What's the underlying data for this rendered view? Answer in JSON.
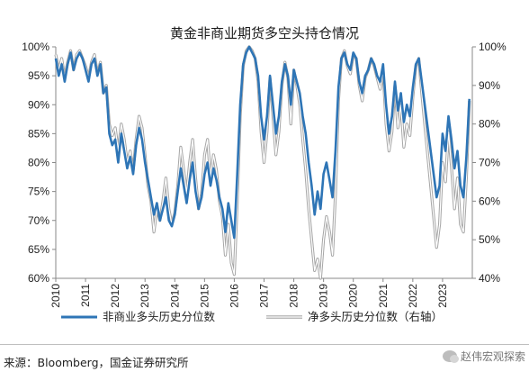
{
  "chart_data": {
    "type": "line",
    "title": "黄金非商业期货多空头持仓情况",
    "x_ticks": [
      "2010",
      "2011",
      "2012",
      "2013",
      "2014",
      "2015",
      "2016",
      "2017",
      "2018",
      "2019",
      "2020",
      "2021",
      "2022",
      "2023"
    ],
    "y_left": {
      "ticks": [
        "100%",
        "95%",
        "90%",
        "85%",
        "80%",
        "75%",
        "70%",
        "65%",
        "60%"
      ],
      "range": [
        60,
        100
      ]
    },
    "y_right": {
      "ticks": [
        "100%",
        "90%",
        "80%",
        "70%",
        "60%",
        "50%",
        "40%"
      ],
      "range": [
        40,
        100
      ]
    },
    "x_range": [
      2010.0,
      2024.0
    ],
    "grid": false,
    "legend": "bottom",
    "series": [
      {
        "name": "非商业多头历史分位数",
        "axis": "left",
        "color": "#2e75b6",
        "points": [
          [
            2010.0,
            98
          ],
          [
            2010.1,
            95
          ],
          [
            2010.2,
            97
          ],
          [
            2010.3,
            94
          ],
          [
            2010.4,
            97
          ],
          [
            2010.5,
            99
          ],
          [
            2010.6,
            96
          ],
          [
            2010.7,
            98
          ],
          [
            2010.8,
            99
          ],
          [
            2010.9,
            98
          ],
          [
            2011.0,
            96
          ],
          [
            2011.1,
            94
          ],
          [
            2011.2,
            97
          ],
          [
            2011.3,
            98
          ],
          [
            2011.4,
            95
          ],
          [
            2011.5,
            97
          ],
          [
            2011.6,
            92
          ],
          [
            2011.7,
            93
          ],
          [
            2011.8,
            85
          ],
          [
            2011.9,
            83
          ],
          [
            2012.0,
            84
          ],
          [
            2012.1,
            80
          ],
          [
            2012.2,
            85
          ],
          [
            2012.3,
            82
          ],
          [
            2012.4,
            79
          ],
          [
            2012.5,
            81
          ],
          [
            2012.6,
            78
          ],
          [
            2012.7,
            83
          ],
          [
            2012.8,
            86
          ],
          [
            2012.9,
            84
          ],
          [
            2013.0,
            80
          ],
          [
            2013.1,
            77
          ],
          [
            2013.2,
            74
          ],
          [
            2013.3,
            71
          ],
          [
            2013.4,
            73
          ],
          [
            2013.5,
            70
          ],
          [
            2013.6,
            72
          ],
          [
            2013.7,
            74
          ],
          [
            2013.8,
            70
          ],
          [
            2013.9,
            69
          ],
          [
            2014.0,
            71
          ],
          [
            2014.1,
            75
          ],
          [
            2014.2,
            79
          ],
          [
            2014.3,
            76
          ],
          [
            2014.4,
            73
          ],
          [
            2014.5,
            77
          ],
          [
            2014.6,
            80
          ],
          [
            2014.7,
            75
          ],
          [
            2014.8,
            72
          ],
          [
            2014.9,
            74
          ],
          [
            2015.0,
            78
          ],
          [
            2015.1,
            80
          ],
          [
            2015.2,
            76
          ],
          [
            2015.3,
            79
          ],
          [
            2015.4,
            77
          ],
          [
            2015.5,
            74
          ],
          [
            2015.6,
            72
          ],
          [
            2015.7,
            68
          ],
          [
            2015.8,
            73
          ],
          [
            2015.9,
            70
          ],
          [
            2016.0,
            67
          ],
          [
            2016.1,
            78
          ],
          [
            2016.2,
            90
          ],
          [
            2016.3,
            97
          ],
          [
            2016.4,
            99
          ],
          [
            2016.5,
            100
          ],
          [
            2016.6,
            99
          ],
          [
            2016.7,
            98
          ],
          [
            2016.8,
            95
          ],
          [
            2016.9,
            88
          ],
          [
            2017.0,
            84
          ],
          [
            2017.1,
            88
          ],
          [
            2017.2,
            95
          ],
          [
            2017.3,
            90
          ],
          [
            2017.4,
            85
          ],
          [
            2017.5,
            88
          ],
          [
            2017.6,
            94
          ],
          [
            2017.7,
            97
          ],
          [
            2017.8,
            95
          ],
          [
            2017.9,
            90
          ],
          [
            2018.0,
            96
          ],
          [
            2018.1,
            94
          ],
          [
            2018.2,
            92
          ],
          [
            2018.3,
            88
          ],
          [
            2018.4,
            85
          ],
          [
            2018.5,
            80
          ],
          [
            2018.6,
            76
          ],
          [
            2018.7,
            71
          ],
          [
            2018.8,
            75
          ],
          [
            2018.9,
            72
          ],
          [
            2019.0,
            78
          ],
          [
            2019.1,
            80
          ],
          [
            2019.2,
            77
          ],
          [
            2019.3,
            74
          ],
          [
            2019.4,
            82
          ],
          [
            2019.5,
            93
          ],
          [
            2019.6,
            98
          ],
          [
            2019.7,
            99
          ],
          [
            2019.8,
            97
          ],
          [
            2019.9,
            96
          ],
          [
            2020.0,
            99
          ],
          [
            2020.1,
            98
          ],
          [
            2020.2,
            94
          ],
          [
            2020.3,
            92
          ],
          [
            2020.4,
            95
          ],
          [
            2020.5,
            96
          ],
          [
            2020.6,
            98
          ],
          [
            2020.7,
            97
          ],
          [
            2020.8,
            95
          ],
          [
            2020.9,
            94
          ],
          [
            2021.0,
            97
          ],
          [
            2021.1,
            90
          ],
          [
            2021.2,
            85
          ],
          [
            2021.3,
            88
          ],
          [
            2021.4,
            94
          ],
          [
            2021.5,
            89
          ],
          [
            2021.6,
            92
          ],
          [
            2021.7,
            87
          ],
          [
            2021.8,
            90
          ],
          [
            2021.9,
            88
          ],
          [
            2022.0,
            93
          ],
          [
            2022.1,
            97
          ],
          [
            2022.2,
            98
          ],
          [
            2022.3,
            94
          ],
          [
            2022.4,
            90
          ],
          [
            2022.5,
            86
          ],
          [
            2022.6,
            82
          ],
          [
            2022.7,
            78
          ],
          [
            2022.8,
            74
          ],
          [
            2022.9,
            76
          ],
          [
            2023.0,
            85
          ],
          [
            2023.1,
            82
          ],
          [
            2023.2,
            88
          ],
          [
            2023.3,
            84
          ],
          [
            2023.4,
            79
          ],
          [
            2023.5,
            82
          ],
          [
            2023.6,
            76
          ],
          [
            2023.7,
            74
          ],
          [
            2023.8,
            81
          ],
          [
            2023.9,
            91
          ]
        ]
      },
      {
        "name": "净多头历史分位数（右轴）",
        "axis": "right",
        "color": "#a6a6a6",
        "points": [
          [
            2010.0,
            98
          ],
          [
            2010.1,
            94
          ],
          [
            2010.2,
            97
          ],
          [
            2010.3,
            92
          ],
          [
            2010.4,
            96
          ],
          [
            2010.5,
            99
          ],
          [
            2010.6,
            94
          ],
          [
            2010.7,
            98
          ],
          [
            2010.8,
            99
          ],
          [
            2010.9,
            97
          ],
          [
            2011.0,
            95
          ],
          [
            2011.1,
            92
          ],
          [
            2011.2,
            96
          ],
          [
            2011.3,
            98
          ],
          [
            2011.4,
            93
          ],
          [
            2011.5,
            96
          ],
          [
            2011.6,
            88
          ],
          [
            2011.7,
            90
          ],
          [
            2011.8,
            80
          ],
          [
            2011.9,
            77
          ],
          [
            2012.0,
            79
          ],
          [
            2012.1,
            73
          ],
          [
            2012.2,
            80
          ],
          [
            2012.3,
            76
          ],
          [
            2012.4,
            70
          ],
          [
            2012.5,
            73
          ],
          [
            2012.6,
            68
          ],
          [
            2012.7,
            76
          ],
          [
            2012.8,
            82
          ],
          [
            2012.9,
            79
          ],
          [
            2013.0,
            72
          ],
          [
            2013.1,
            64
          ],
          [
            2013.2,
            60
          ],
          [
            2013.3,
            52
          ],
          [
            2013.4,
            58
          ],
          [
            2013.5,
            55
          ],
          [
            2013.6,
            60
          ],
          [
            2013.7,
            66
          ],
          [
            2013.8,
            58
          ],
          [
            2013.9,
            54
          ],
          [
            2014.0,
            57
          ],
          [
            2014.1,
            64
          ],
          [
            2014.2,
            74
          ],
          [
            2014.3,
            68
          ],
          [
            2014.4,
            62
          ],
          [
            2014.5,
            70
          ],
          [
            2014.6,
            76
          ],
          [
            2014.7,
            66
          ],
          [
            2014.8,
            58
          ],
          [
            2014.9,
            62
          ],
          [
            2015.0,
            72
          ],
          [
            2015.1,
            76
          ],
          [
            2015.2,
            66
          ],
          [
            2015.3,
            72
          ],
          [
            2015.4,
            68
          ],
          [
            2015.5,
            60
          ],
          [
            2015.6,
            56
          ],
          [
            2015.7,
            46
          ],
          [
            2015.8,
            54
          ],
          [
            2015.9,
            44
          ],
          [
            2016.0,
            41
          ],
          [
            2016.1,
            60
          ],
          [
            2016.2,
            82
          ],
          [
            2016.3,
            95
          ],
          [
            2016.4,
            99
          ],
          [
            2016.5,
            100
          ],
          [
            2016.6,
            99
          ],
          [
            2016.7,
            97
          ],
          [
            2016.8,
            91
          ],
          [
            2016.9,
            78
          ],
          [
            2017.0,
            70
          ],
          [
            2017.1,
            78
          ],
          [
            2017.2,
            92
          ],
          [
            2017.3,
            82
          ],
          [
            2017.4,
            72
          ],
          [
            2017.5,
            78
          ],
          [
            2017.6,
            90
          ],
          [
            2017.7,
            96
          ],
          [
            2017.8,
            92
          ],
          [
            2017.9,
            80
          ],
          [
            2018.0,
            94
          ],
          [
            2018.1,
            90
          ],
          [
            2018.2,
            85
          ],
          [
            2018.3,
            76
          ],
          [
            2018.4,
            68
          ],
          [
            2018.5,
            58
          ],
          [
            2018.6,
            50
          ],
          [
            2018.7,
            42
          ],
          [
            2018.8,
            45
          ],
          [
            2018.9,
            40
          ],
          [
            2019.0,
            50
          ],
          [
            2019.1,
            56
          ],
          [
            2019.2,
            52
          ],
          [
            2019.3,
            46
          ],
          [
            2019.4,
            62
          ],
          [
            2019.5,
            86
          ],
          [
            2019.6,
            97
          ],
          [
            2019.7,
            99
          ],
          [
            2019.8,
            95
          ],
          [
            2019.9,
            93
          ],
          [
            2020.0,
            98
          ],
          [
            2020.1,
            97
          ],
          [
            2020.2,
            90
          ],
          [
            2020.3,
            86
          ],
          [
            2020.4,
            92
          ],
          [
            2020.5,
            94
          ],
          [
            2020.6,
            97
          ],
          [
            2020.7,
            95
          ],
          [
            2020.8,
            92
          ],
          [
            2020.9,
            89
          ],
          [
            2021.0,
            94
          ],
          [
            2021.1,
            80
          ],
          [
            2021.2,
            73
          ],
          [
            2021.3,
            78
          ],
          [
            2021.4,
            90
          ],
          [
            2021.5,
            79
          ],
          [
            2021.6,
            85
          ],
          [
            2021.7,
            74
          ],
          [
            2021.8,
            80
          ],
          [
            2021.9,
            77
          ],
          [
            2022.0,
            87
          ],
          [
            2022.1,
            95
          ],
          [
            2022.2,
            97
          ],
          [
            2022.3,
            88
          ],
          [
            2022.4,
            80
          ],
          [
            2022.5,
            72
          ],
          [
            2022.6,
            64
          ],
          [
            2022.7,
            56
          ],
          [
            2022.8,
            48
          ],
          [
            2022.9,
            54
          ],
          [
            2023.0,
            70
          ],
          [
            2023.1,
            65
          ],
          [
            2023.2,
            78
          ],
          [
            2023.3,
            69
          ],
          [
            2023.4,
            58
          ],
          [
            2023.5,
            66
          ],
          [
            2023.6,
            54
          ],
          [
            2023.7,
            52
          ],
          [
            2023.8,
            66
          ],
          [
            2023.9,
            86
          ]
        ]
      }
    ]
  },
  "footer": {
    "source": "来源：Bloomberg，国金证券研究所",
    "watermark": "赵伟宏观探索"
  }
}
